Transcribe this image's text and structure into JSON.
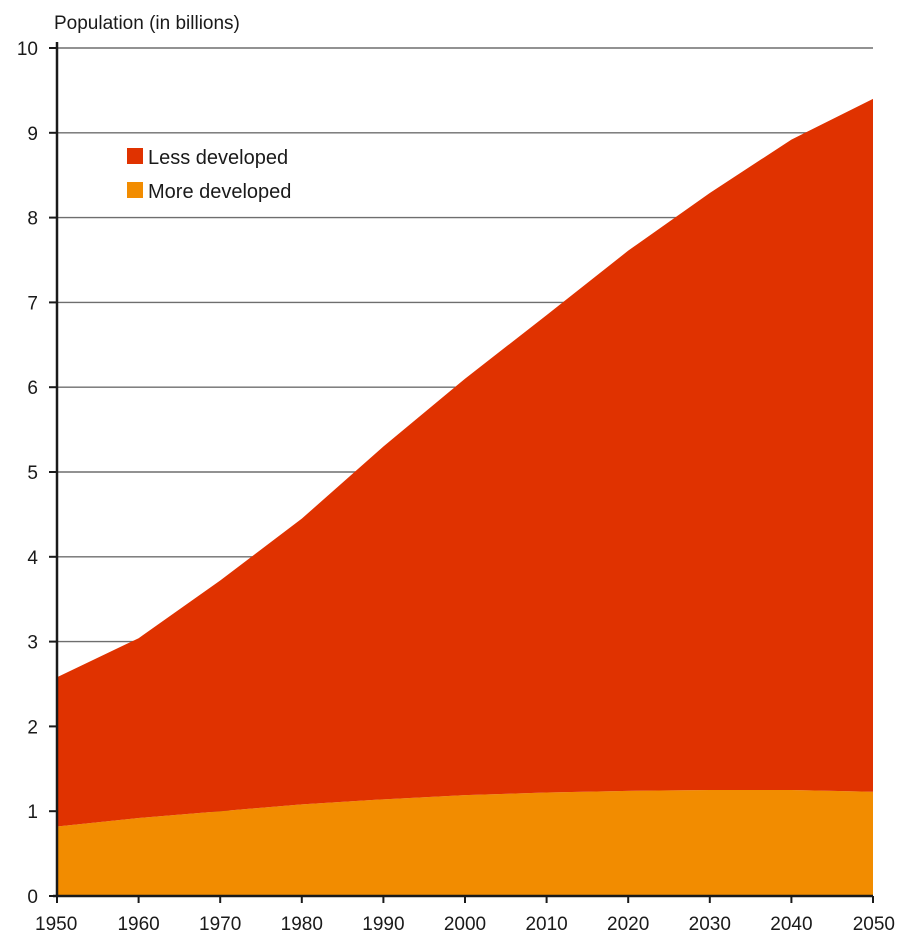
{
  "chart_data": {
    "type": "area",
    "stacked": true,
    "ylabel": "Population (in billions)",
    "xlabel": "",
    "xlim": [
      1950,
      2050
    ],
    "ylim": [
      0,
      10
    ],
    "x_ticks": [
      1950,
      1960,
      1970,
      1980,
      1990,
      2000,
      2010,
      2020,
      2030,
      2040,
      2050
    ],
    "y_ticks": [
      0,
      1,
      2,
      3,
      4,
      5,
      6,
      7,
      8,
      9,
      10
    ],
    "grid": "horizontal",
    "legend_position": "top-left",
    "x": [
      1950,
      1960,
      1970,
      1980,
      1990,
      2000,
      2010,
      2020,
      2030,
      2040,
      2050
    ],
    "series": [
      {
        "name": "More developed",
        "color": "#f28c00",
        "values": [
          0.82,
          0.92,
          1.0,
          1.08,
          1.14,
          1.19,
          1.22,
          1.24,
          1.25,
          1.25,
          1.23
        ]
      },
      {
        "name": "Less developed",
        "color": "#e03200",
        "values": [
          1.76,
          2.12,
          2.72,
          3.37,
          4.16,
          4.91,
          5.63,
          6.37,
          7.04,
          7.67,
          8.17
        ]
      }
    ]
  }
}
